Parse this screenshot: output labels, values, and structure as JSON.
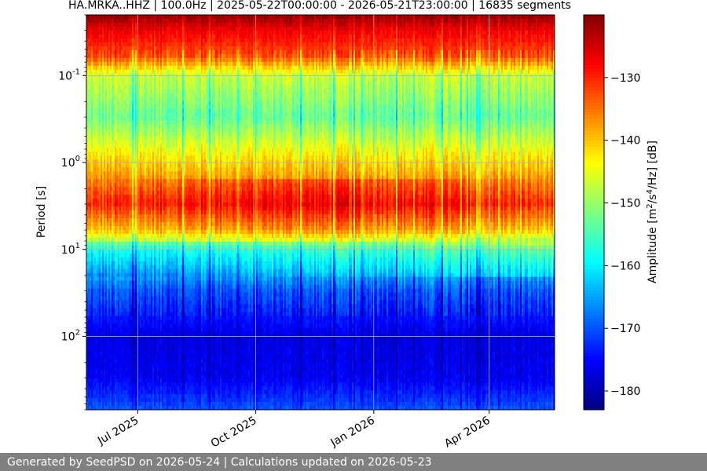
{
  "chart_data": {
    "type": "heatmap",
    "title": "HA.MRKA..HHZ | 100.0Hz | 2025-05-22T00:00:00 - 2026-05-21T23:00:00 | 16835 segments",
    "xlabel": "",
    "ylabel": "Period [s]",
    "x_range": [
      "2025-05-22T00:00:00",
      "2026-05-21T23:00:00"
    ],
    "x_ticks": [
      {
        "date": "2025-07-01",
        "label": "Jul 2025"
      },
      {
        "date": "2025-10-01",
        "label": "Oct 2025"
      },
      {
        "date": "2026-01-01",
        "label": "Jan 2026"
      },
      {
        "date": "2026-04-01",
        "label": "Apr 2026"
      }
    ],
    "y_scale": "log",
    "y_inverted": true,
    "y_range": [
      0.02,
      700
    ],
    "y_ticks": [
      {
        "value": 0.1,
        "label": "10^-1"
      },
      {
        "value": 1,
        "label": "10^0"
      },
      {
        "value": 10,
        "label": "10^1"
      },
      {
        "value": 100,
        "label": "10^2"
      }
    ],
    "grid": true,
    "colormap": "jet",
    "colorbar": {
      "label": "Amplitude [m^2/s^4/Hz] [dB]",
      "range": [
        -183,
        -120
      ],
      "ticks": [
        -130,
        -140,
        -150,
        -160,
        -170,
        -180
      ]
    },
    "amplitude_profile_db": [
      {
        "period": 0.02,
        "db": -121
      },
      {
        "period": 0.03,
        "db": -127
      },
      {
        "period": 0.06,
        "db": -133
      },
      {
        "period": 0.1,
        "db": -147
      },
      {
        "period": 0.3,
        "db": -153
      },
      {
        "period": 1.0,
        "db": -141
      },
      {
        "period": 3.0,
        "db": -131
      },
      {
        "period": 6.0,
        "db": -141
      },
      {
        "period": 10.0,
        "db": -157
      },
      {
        "period": 30.0,
        "db": -170
      },
      {
        "period": 100,
        "db": -177
      },
      {
        "period": 300,
        "db": -176
      },
      {
        "period": 700,
        "db": -170
      }
    ]
  },
  "footer": {
    "text": "Generated by SeedPSD on 2026-05-24 | Calculations updated on 2026-05-23"
  }
}
